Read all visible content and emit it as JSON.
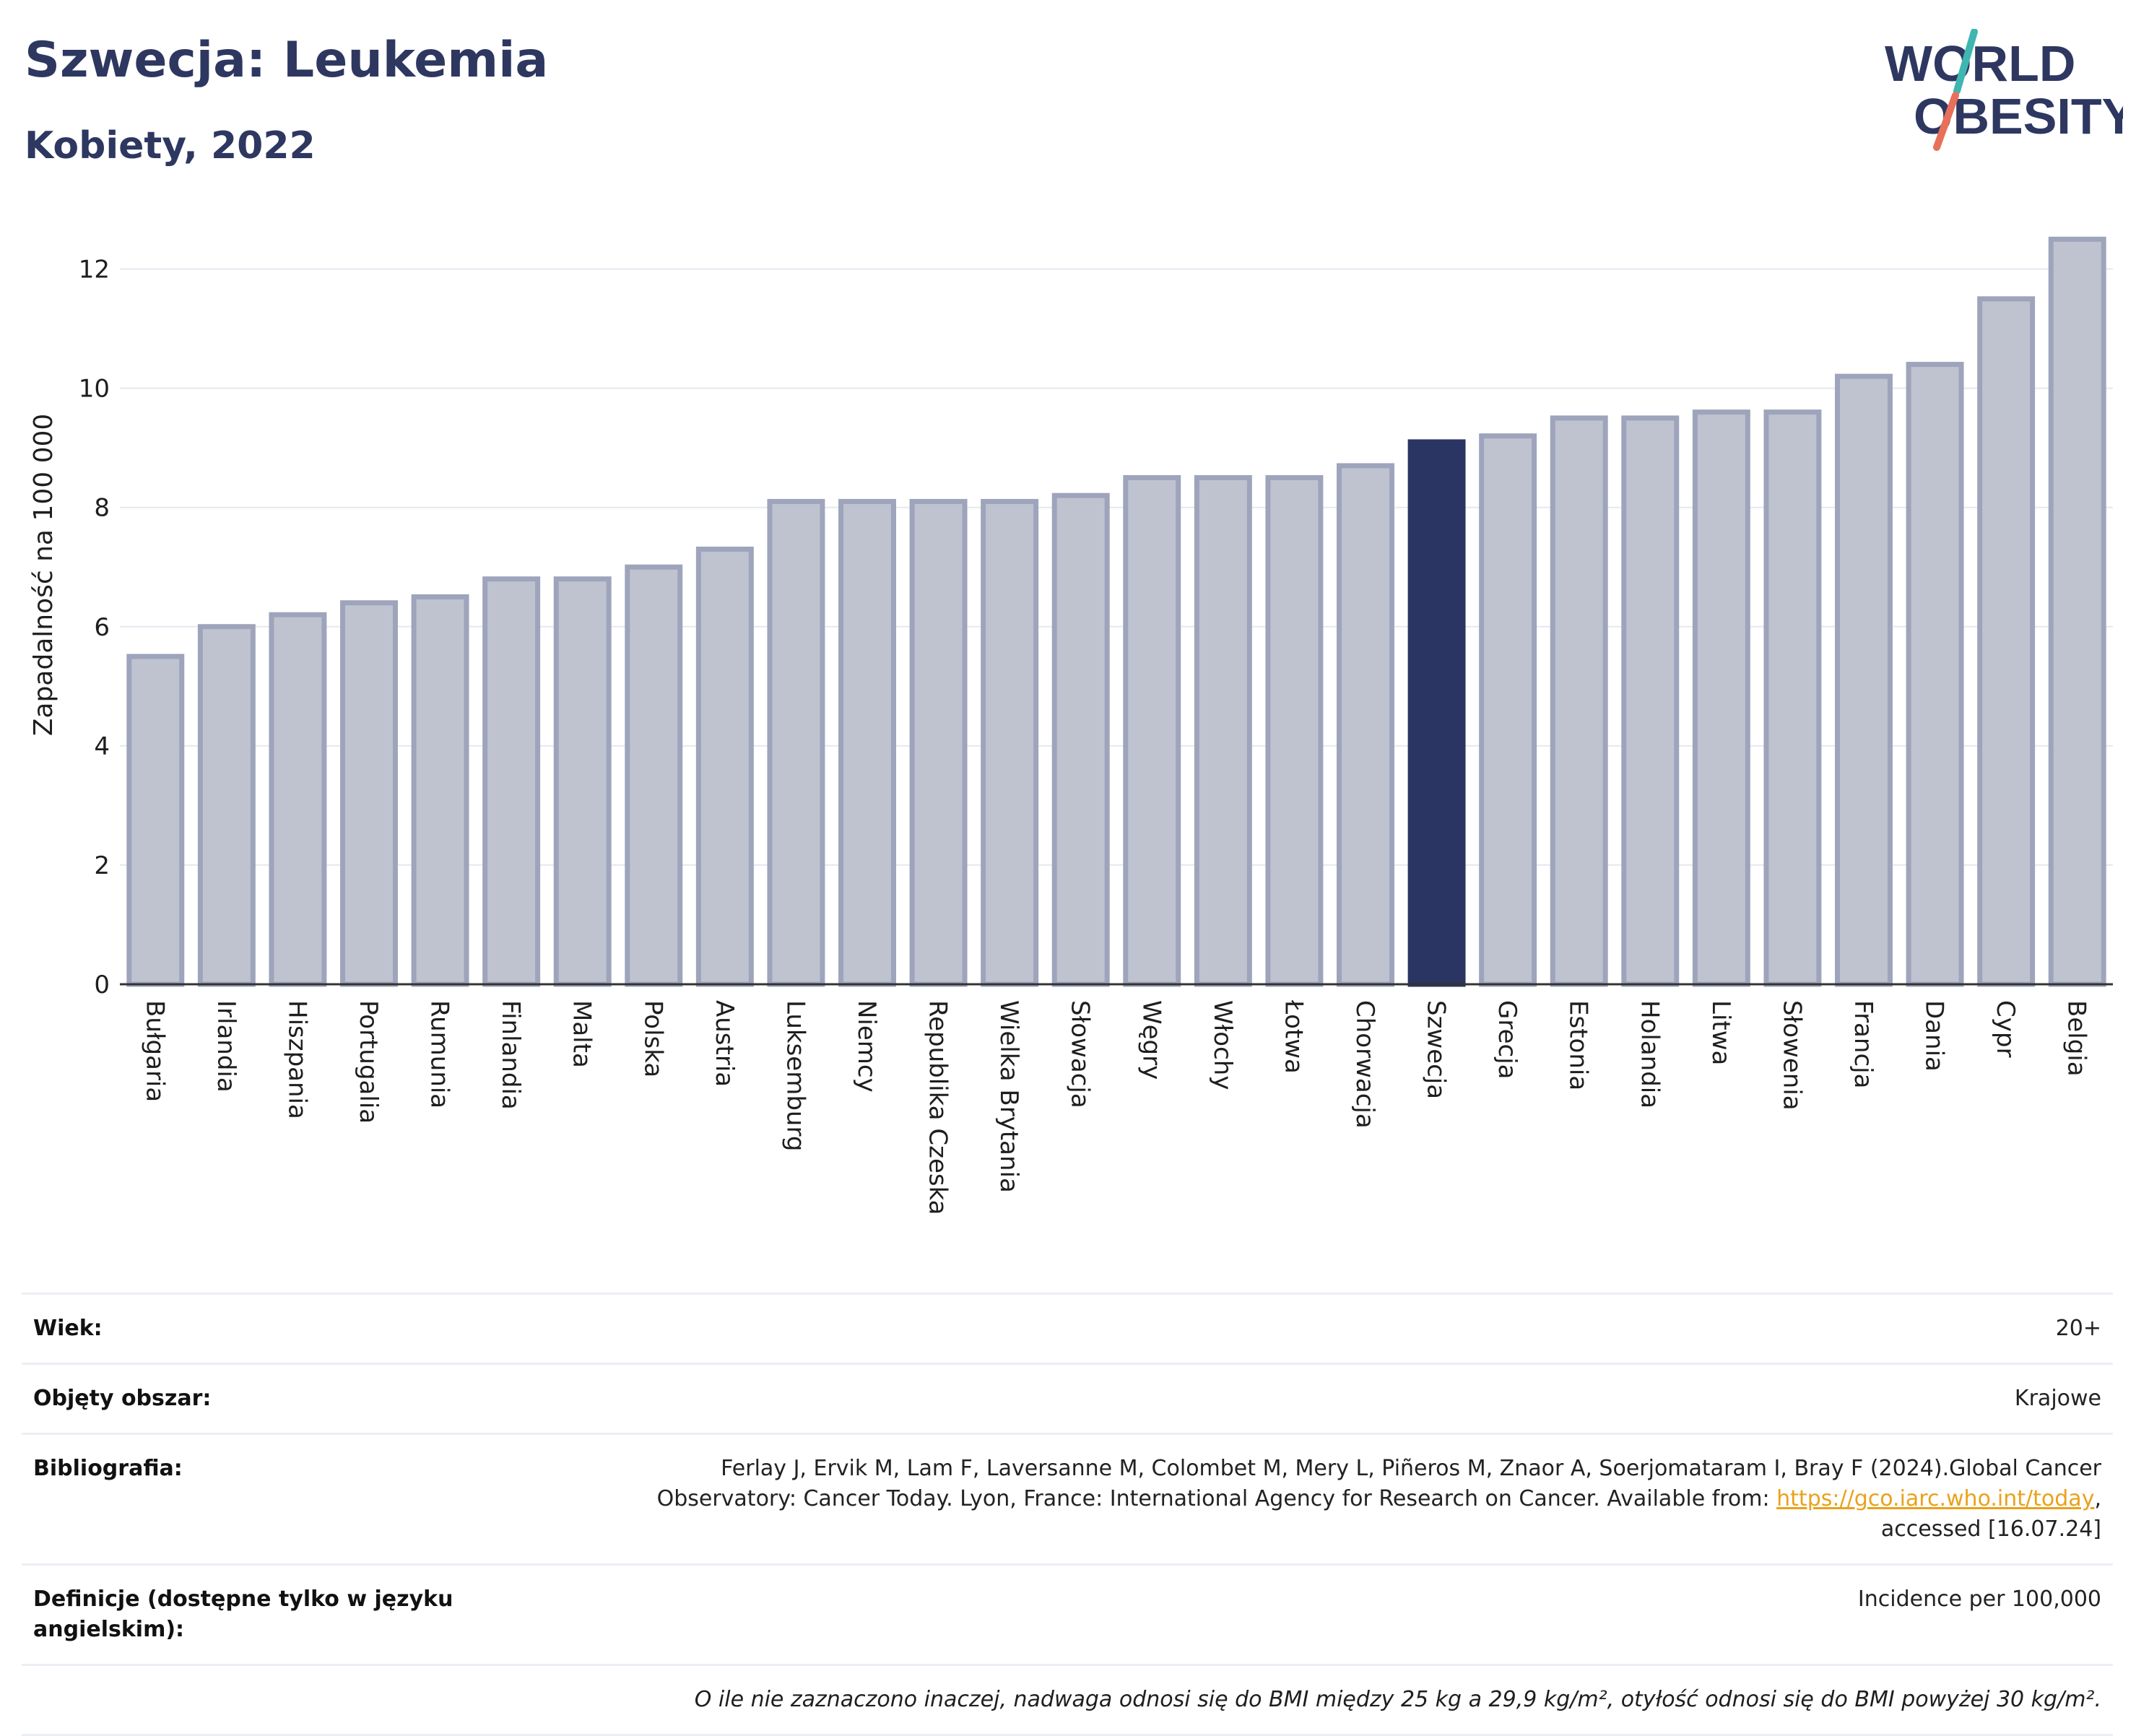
{
  "header": {
    "title": "Szwecja: Leukemia",
    "subtitle": "Kobiety, 2022",
    "logo_line1": "WORLD",
    "logo_line2": "OBESITY"
  },
  "chart_data": {
    "type": "bar",
    "ylabel": "Zapadalność na 100 000",
    "ylim": [
      0,
      13
    ],
    "yticks": [
      0,
      2,
      4,
      6,
      8,
      10,
      12
    ],
    "grid": true,
    "highlight": "Szwecja",
    "colors": {
      "bar": "#bfc3d0",
      "bar_edge": "#9ea4bb",
      "highlight": "#2b3563"
    },
    "categories": [
      "Bułgaria",
      "Irlandia",
      "Hiszpania",
      "Portugalia",
      "Rumunia",
      "Finlandia",
      "Malta",
      "Polska",
      "Austria",
      "Luksemburg",
      "Niemcy",
      "Republika Czeska",
      "Wielka Brytania",
      "Słowacja",
      "Węgry",
      "Włochy",
      "Łotwa",
      "Chorwacja",
      "Szwecja",
      "Grecja",
      "Estonia",
      "Holandia",
      "Litwa",
      "Słowenia",
      "Francja",
      "Dania",
      "Cypr",
      "Belgia"
    ],
    "values": [
      5.5,
      6.0,
      6.2,
      6.4,
      6.5,
      6.8,
      6.8,
      7.0,
      7.3,
      8.1,
      8.1,
      8.1,
      8.1,
      8.2,
      8.5,
      8.5,
      8.5,
      8.7,
      9.1,
      9.2,
      9.5,
      9.5,
      9.6,
      9.6,
      10.2,
      10.4,
      11.5,
      12.5
    ]
  },
  "meta": {
    "age_label": "Wiek:",
    "age_value": "20+",
    "area_label": "Objęty obszar:",
    "area_value": "Krajowe",
    "bib_label": "Bibliografia:",
    "bib_text1": "Ferlay J, Ervik M, Lam F, Laversanne M, Colombet M, Mery L, Piñeros M, Znaor A, Soerjomataram I, Bray F (2024).Global Cancer",
    "bib_text2": "Observatory: Cancer Today. Lyon, France: International Agency for Research on Cancer. Available from: ",
    "bib_link": "https://gco.iarc.who.int/today",
    "bib_text3": ",",
    "bib_text4": "accessed [16.07.24]",
    "def_label": "Definicje (dostępne tylko w języku angielskim):",
    "def_value": "Incidence per 100,000",
    "note": "O ile nie zaznaczono inaczej, nadwaga odnosi się do BMI między 25 kg a 29,9 kg/m², otyłość odnosi się do BMI powyżej 30 kg/m²."
  }
}
